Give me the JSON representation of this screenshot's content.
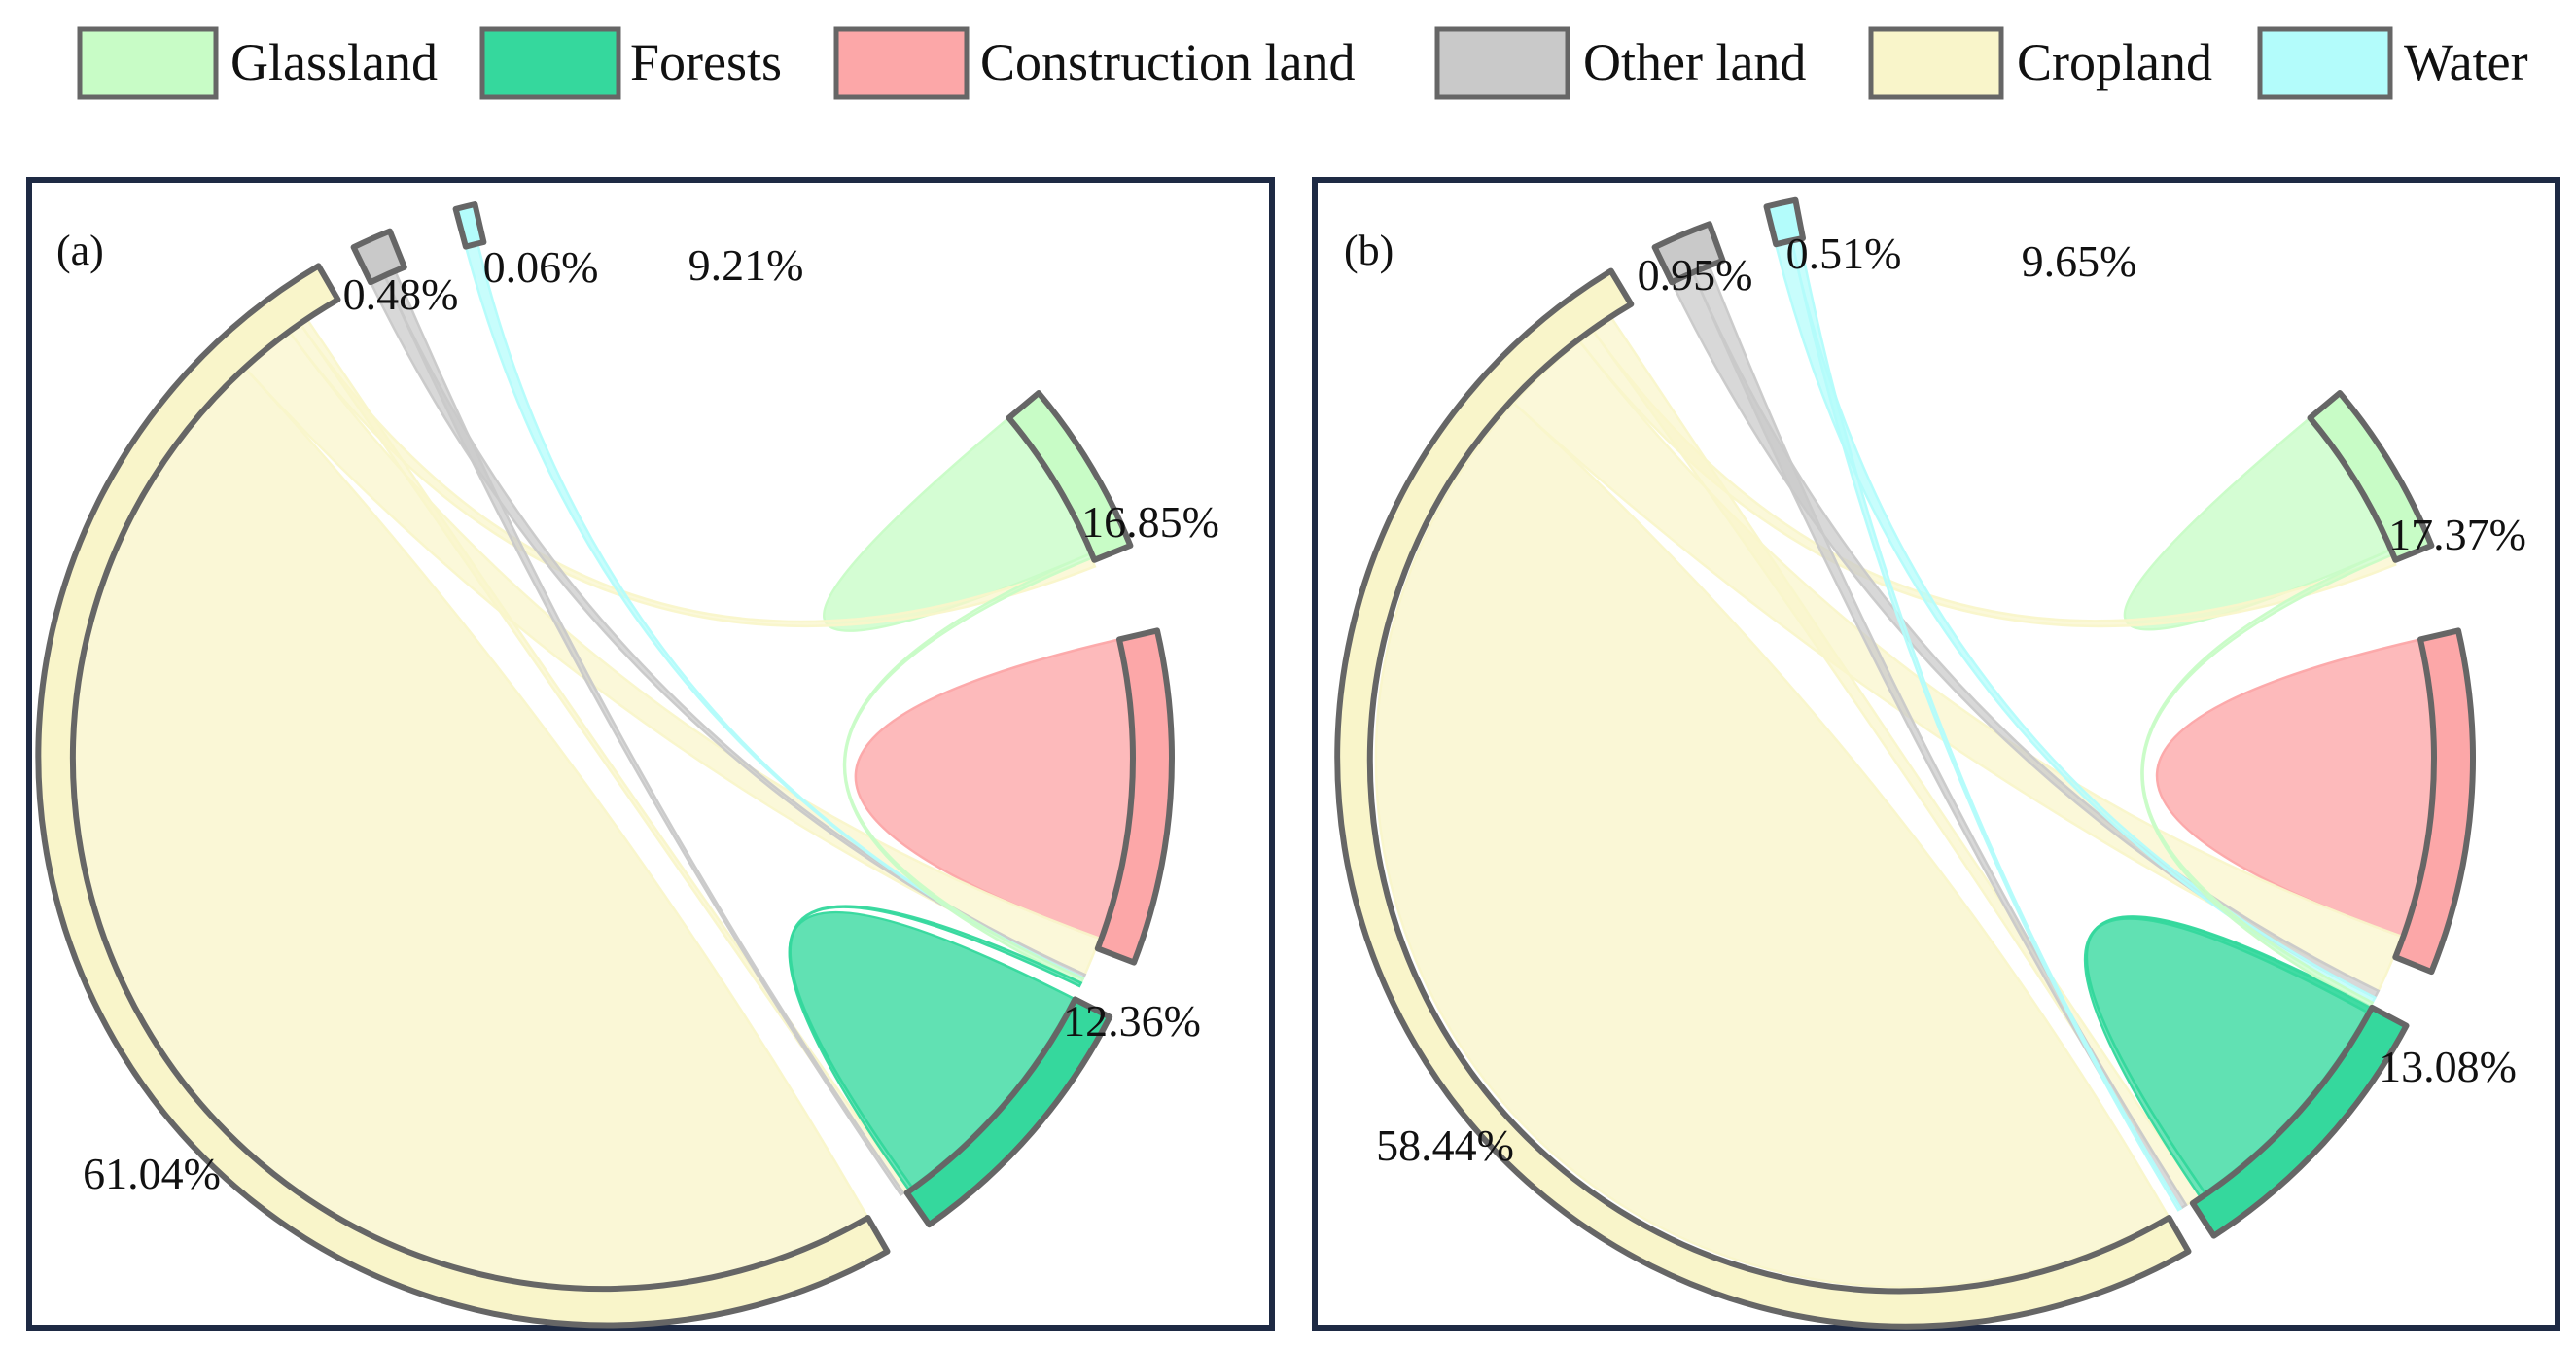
{
  "legend": [
    {
      "name": "Glassland",
      "color": "#c8fcc6"
    },
    {
      "name": "Forests",
      "color": "#35d89d"
    },
    {
      "name": "Construction land",
      "color": "#fca7a8"
    },
    {
      "name": "Other land",
      "color": "#c9c9c9"
    },
    {
      "name": "Cropland",
      "color": "#f9f5ca"
    },
    {
      "name": "Water",
      "color": "#b3fcfb"
    }
  ],
  "chart_data": [
    {
      "type": "chord",
      "panel_label": "(a)",
      "order": [
        "Glassland",
        "Construction land",
        "Forests",
        "Cropland",
        "Other land",
        "Water"
      ],
      "values": [
        9.21,
        16.85,
        12.36,
        61.04,
        0.48,
        0.06
      ],
      "labels": [
        "9.21%",
        "16.85%",
        "12.36%",
        "61.04%",
        "0.48%",
        "0.06%"
      ],
      "flows": [
        [
          "Glassland",
          "Glassland",
          8.8
        ],
        [
          "Construction land",
          "Construction land",
          16.3
        ],
        [
          "Forests",
          "Forests",
          12.0
        ],
        [
          "Cropland",
          "Cropland",
          56.8
        ],
        [
          "Cropland",
          "Construction land",
          2.1
        ],
        [
          "Cropland",
          "Glassland",
          0.5
        ],
        [
          "Cropland",
          "Forests",
          0.3
        ],
        [
          "Other land",
          "Construction land",
          0.2
        ],
        [
          "Other land",
          "Forests",
          0.15
        ],
        [
          "Water",
          "Construction land",
          0.04
        ],
        [
          "Glassland",
          "Construction land",
          0.25
        ],
        [
          "Forests",
          "Construction land",
          0.2
        ]
      ]
    },
    {
      "type": "chord",
      "panel_label": "(b)",
      "order": [
        "Glassland",
        "Construction land",
        "Forests",
        "Cropland",
        "Other land",
        "Water"
      ],
      "values": [
        9.65,
        17.37,
        13.08,
        58.44,
        0.95,
        0.51
      ],
      "labels": [
        "9.65%",
        "17.37%",
        "13.08%",
        "58.44%",
        "0.95%",
        "0.51%"
      ],
      "flows": [
        [
          "Glassland",
          "Glassland",
          9.0
        ],
        [
          "Construction land",
          "Construction land",
          16.2
        ],
        [
          "Forests",
          "Forests",
          12.3
        ],
        [
          "Cropland",
          "Cropland",
          53.0
        ],
        [
          "Cropland",
          "Construction land",
          3.2
        ],
        [
          "Cropland",
          "Glassland",
          0.6
        ],
        [
          "Cropland",
          "Forests",
          0.8
        ],
        [
          "Other land",
          "Construction land",
          0.4
        ],
        [
          "Other land",
          "Forests",
          0.3
        ],
        [
          "Water",
          "Construction land",
          0.3
        ],
        [
          "Water",
          "Forests",
          0.15
        ],
        [
          "Glassland",
          "Construction land",
          0.3
        ],
        [
          "Forests",
          "Construction land",
          0.3
        ]
      ]
    }
  ]
}
